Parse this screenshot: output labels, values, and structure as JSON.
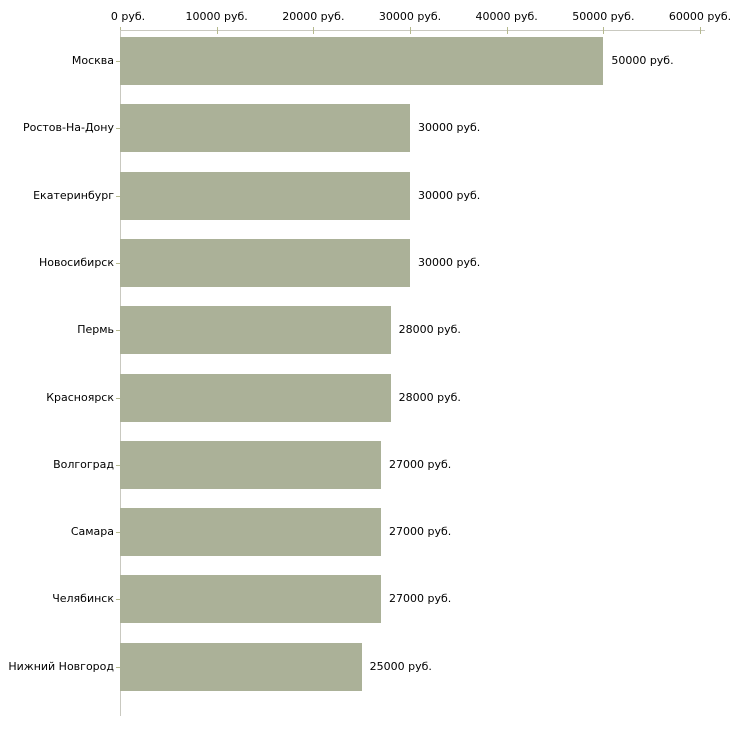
{
  "chart_data": {
    "type": "bar",
    "orientation": "horizontal",
    "title": "",
    "xlabel": "",
    "ylabel": "",
    "categories": [
      "Москва",
      "Ростов-На-Дону",
      "Екатеринбург",
      "Новосибирск",
      "Пермь",
      "Красноярск",
      "Волгоград",
      "Самара",
      "Челябинск",
      "Нижний Новгород"
    ],
    "values": [
      50000,
      30000,
      30000,
      30000,
      28000,
      28000,
      27000,
      27000,
      27000,
      25000
    ],
    "value_labels": [
      "50000 руб.",
      "30000 руб.",
      "30000 руб.",
      "30000 руб.",
      "28000 руб.",
      "28000 руб.",
      "27000 руб.",
      "27000 руб.",
      "27000 руб.",
      "25000 руб."
    ],
    "x_axis": {
      "position": "top",
      "xlim": [
        0,
        60000
      ],
      "ticks": [
        0,
        10000,
        20000,
        30000,
        40000,
        50000,
        60000
      ],
      "tick_labels": [
        "0 руб.",
        "10000 руб.",
        "20000 руб.",
        "30000 руб.",
        "40000 руб.",
        "50000 руб.",
        "60000 руб."
      ]
    },
    "grid": false,
    "legend": false,
    "colors": {
      "bar": "#abb198",
      "axis_line": "#c9c9c0",
      "tick": "#b5b98e",
      "text": "#000000",
      "background": "#ffffff"
    }
  }
}
